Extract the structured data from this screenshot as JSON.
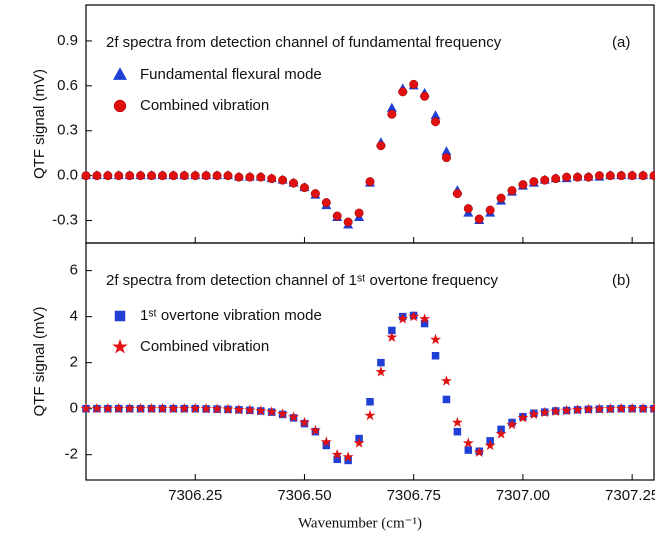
{
  "chart_data": [
    {
      "type": "scatter",
      "panel": "(a)",
      "annotation": "2f spectra from detection channel of fundamental frequency",
      "ylabel": "QTF signal (mV)",
      "x": [
        7306.0,
        7306.025,
        7306.05,
        7306.075,
        7306.1,
        7306.125,
        7306.15,
        7306.175,
        7306.2,
        7306.225,
        7306.25,
        7306.275,
        7306.3,
        7306.325,
        7306.35,
        7306.375,
        7306.4,
        7306.425,
        7306.45,
        7306.475,
        7306.5,
        7306.525,
        7306.55,
        7306.575,
        7306.6,
        7306.625,
        7306.65,
        7306.675,
        7306.7,
        7306.725,
        7306.75,
        7306.775,
        7306.8,
        7306.825,
        7306.85,
        7306.875,
        7306.9,
        7306.925,
        7306.95,
        7306.975,
        7307.0,
        7307.025,
        7307.05,
        7307.075,
        7307.1,
        7307.125,
        7307.15,
        7307.175,
        7307.2,
        7307.225,
        7307.25,
        7307.275,
        7307.3
      ],
      "series": [
        {
          "name": "Fundamental flexural mode",
          "color": "#1f3fd6",
          "marker": "triangle",
          "values": [
            0,
            0,
            0,
            0,
            0,
            0,
            0,
            0,
            0,
            0,
            0,
            0,
            0,
            0,
            -0.01,
            -0.01,
            -0.01,
            -0.02,
            -0.03,
            -0.05,
            -0.08,
            -0.13,
            -0.2,
            -0.28,
            -0.33,
            -0.28,
            -0.05,
            0.22,
            0.45,
            0.58,
            0.6,
            0.55,
            0.4,
            0.16,
            -0.1,
            -0.25,
            -0.3,
            -0.25,
            -0.17,
            -0.11,
            -0.07,
            -0.05,
            -0.03,
            -0.02,
            -0.02,
            -0.01,
            -0.01,
            -0.01,
            0,
            0,
            0,
            0,
            0
          ]
        },
        {
          "name": "Combined vibration",
          "color": "#e01010",
          "marker": "circle",
          "values": [
            0,
            0,
            0,
            0,
            0,
            0,
            0,
            0,
            0,
            0,
            0,
            0,
            0,
            0,
            -0.01,
            -0.01,
            -0.01,
            -0.02,
            -0.03,
            -0.05,
            -0.08,
            -0.12,
            -0.18,
            -0.27,
            -0.31,
            -0.25,
            -0.04,
            0.2,
            0.41,
            0.56,
            0.61,
            0.53,
            0.36,
            0.12,
            -0.12,
            -0.22,
            -0.29,
            -0.23,
            -0.15,
            -0.1,
            -0.06,
            -0.04,
            -0.03,
            -0.02,
            -0.01,
            -0.01,
            -0.01,
            0,
            0,
            0,
            0,
            0,
            0
          ]
        }
      ],
      "xlim": [
        7306.0,
        7307.3
      ],
      "xticks": [
        7306.25,
        {
          "value": 7306.5,
          "label": "7306.50"
        },
        7306.75,
        {
          "value": 7307.0,
          "label": "7307.00"
        },
        7307.25
      ],
      "ylim": [
        -0.45,
        1.14
      ],
      "yticks": [
        -0.3,
        {
          "value": 0,
          "label": "0.0"
        },
        0.3,
        0.6,
        0.9
      ]
    },
    {
      "type": "scatter",
      "panel": "(b)",
      "annotation": "2f spectra from detection channel of 1ˢᵗ overtone frequency",
      "ylabel": "QTF signal (mV)",
      "xlabel": "Wavenumber (cm⁻¹)",
      "x": [
        7306.0,
        7306.025,
        7306.05,
        7306.075,
        7306.1,
        7306.125,
        7306.15,
        7306.175,
        7306.2,
        7306.225,
        7306.25,
        7306.275,
        7306.3,
        7306.325,
        7306.35,
        7306.375,
        7306.4,
        7306.425,
        7306.45,
        7306.475,
        7306.5,
        7306.525,
        7306.55,
        7306.575,
        7306.6,
        7306.625,
        7306.65,
        7306.675,
        7306.7,
        7306.725,
        7306.75,
        7306.775,
        7306.8,
        7306.825,
        7306.85,
        7306.875,
        7306.9,
        7306.925,
        7306.95,
        7306.975,
        7307.0,
        7307.025,
        7307.05,
        7307.075,
        7307.1,
        7307.125,
        7307.15,
        7307.175,
        7307.2,
        7307.225,
        7307.25,
        7307.275,
        7307.3
      ],
      "series": [
        {
          "name": "1ˢᵗ overtone vibration mode",
          "color": "#1f3fd6",
          "marker": "square",
          "values": [
            0,
            0,
            0,
            0,
            0,
            0,
            0,
            0,
            0,
            0,
            0,
            -0.01,
            -0.02,
            -0.03,
            -0.05,
            -0.07,
            -0.1,
            -0.15,
            -0.25,
            -0.4,
            -0.65,
            -1.0,
            -1.6,
            -2.2,
            -2.25,
            -1.3,
            0.3,
            2.0,
            3.4,
            4.0,
            4.05,
            3.7,
            2.3,
            0.4,
            -1.0,
            -1.8,
            -1.85,
            -1.4,
            -0.9,
            -0.6,
            -0.35,
            -0.2,
            -0.15,
            -0.1,
            -0.08,
            -0.05,
            -0.03,
            -0.02,
            -0.01,
            0,
            0,
            0,
            0
          ]
        },
        {
          "name": "Combined vibration",
          "color": "#e01010",
          "marker": "star",
          "values": [
            0,
            0,
            0,
            0,
            0,
            0,
            0,
            0,
            0,
            0,
            0,
            -0.01,
            -0.02,
            -0.03,
            -0.05,
            -0.07,
            -0.1,
            -0.14,
            -0.23,
            -0.37,
            -0.6,
            -0.95,
            -1.45,
            -2.0,
            -2.1,
            -1.5,
            -0.3,
            1.6,
            3.1,
            3.9,
            4.0,
            3.9,
            3.0,
            1.2,
            -0.6,
            -1.5,
            -1.9,
            -1.6,
            -1.1,
            -0.7,
            -0.4,
            -0.25,
            -0.17,
            -0.12,
            -0.08,
            -0.05,
            -0.03,
            -0.02,
            -0.01,
            0,
            0,
            0,
            0
          ]
        }
      ],
      "xlim": [
        7306.0,
        7307.3
      ],
      "xticks": [
        7306.25,
        {
          "value": 7306.5,
          "label": "7306.50"
        },
        7306.75,
        {
          "value": 7307.0,
          "label": "7307.00"
        },
        7307.25
      ],
      "ylim": [
        -3.1,
        7.2
      ],
      "yticks": [
        -2,
        0,
        2,
        4,
        6
      ]
    }
  ]
}
